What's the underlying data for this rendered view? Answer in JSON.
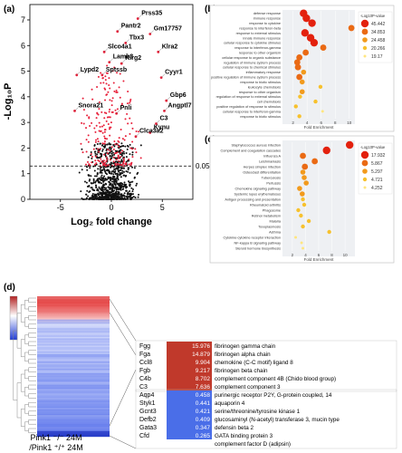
{
  "panels": {
    "a": "(a)",
    "b": "(b)",
    "c": "(c)",
    "d": "(d)"
  },
  "chart_data": [
    {
      "type": "scatter",
      "panel": "a",
      "xlabel": "Log₂ fold change",
      "ylabel": "-Log₁₀P",
      "xticks": [
        -5,
        0,
        5
      ],
      "yticks": [
        0,
        1,
        2,
        3,
        4,
        5,
        6,
        7
      ],
      "xlim": [
        -8,
        8
      ],
      "ylim": [
        0,
        7.6
      ],
      "threshold": {
        "value": 1.3,
        "label": "0.05"
      },
      "points": [
        {
          "label": "Prss35",
          "x": 2.6,
          "y": 7.05
        },
        {
          "label": "Pantr2",
          "x": 0.6,
          "y": 6.55
        },
        {
          "label": "Gm17757",
          "x": 3.8,
          "y": 6.45
        },
        {
          "label": "Tbx3",
          "x": 1.4,
          "y": 6.1
        },
        {
          "label": "Slco4a1",
          "x": -0.7,
          "y": 5.75
        },
        {
          "label": "Klra2",
          "x": 4.6,
          "y": 5.75
        },
        {
          "label": "Lamb3",
          "x": -0.2,
          "y": 5.35
        },
        {
          "label": "Klrg2",
          "x": 1.0,
          "y": 5.3
        },
        {
          "label": "Lypd2",
          "x": -3.4,
          "y": 4.85
        },
        {
          "label": "Sptssb",
          "x": -0.9,
          "y": 4.85
        },
        {
          "label": "Cyyr1",
          "x": 4.9,
          "y": 4.75
        },
        {
          "label": "Gbp6",
          "x": 5.4,
          "y": 3.85
        },
        {
          "label": "Snora21",
          "x": -3.6,
          "y": 3.45
        },
        {
          "label": "Angptl7",
          "x": 5.2,
          "y": 3.45
        },
        {
          "label": "Pnli",
          "x": 0.5,
          "y": 3.35
        },
        {
          "label": "C3",
          "x": 4.4,
          "y": 2.95
        },
        {
          "label": "Kynu",
          "x": 3.8,
          "y": 2.6
        },
        {
          "label": "Clca3a2",
          "x": 2.4,
          "y": 2.45
        }
      ]
    },
    {
      "type": "bubble",
      "panel": "b",
      "xlabel": "Fold Enrichment",
      "xticks": [
        2,
        4,
        6,
        8,
        10
      ],
      "xlim": [
        0.5,
        10.8
      ],
      "legend": {
        "title": "-Log10P-value",
        "entries": [
          "45.442",
          "34.853",
          "24.458",
          "20.266",
          "19.17"
        ]
      },
      "categories": [
        "defense response",
        "immune response",
        "response to cytokine",
        "response to interferon-beta",
        "response to external stimulus",
        "innate immune response",
        "cellular response to cytokine stimulus",
        "response to interferon-gamma",
        "response to other organism",
        "cellular response to organic substance",
        "regulation of immune system process",
        "cellular response to chemical stimulus",
        "inflammatory response",
        "positive regulation of immune system process",
        "response to biotic stimulus",
        "leukocyte chemotaxis",
        "response to other organism",
        "regulation of response to external stimulus",
        "cell chemotaxis",
        "positive regulation of response to stimulus",
        "cellular response to interferon-gamma",
        "response to biotic stimulus"
      ],
      "x": [
        3.5,
        3.9,
        4.7,
        10.3,
        3.7,
        4.5,
        5.0,
        6.3,
        3.8,
        2.9,
        2.6,
        2.7,
        3.5,
        2.9,
        3.3,
        5.9,
        3.3,
        3.0,
        5.2,
        2.4,
        6.2,
        2.9
      ],
      "level": [
        5,
        5,
        5,
        4,
        5,
        5,
        5,
        4,
        4,
        4,
        4,
        4,
        3,
        4,
        3,
        2,
        3,
        2,
        2,
        2,
        1,
        2
      ]
    },
    {
      "type": "bubble",
      "panel": "c",
      "xlabel": "Fold Enrichment",
      "xticks": [
        2,
        4,
        6,
        8,
        10
      ],
      "xlim": [
        0.5,
        11.5
      ],
      "legend": {
        "title": "-Log10P-value",
        "entries": [
          "17.932",
          "5.867",
          "5.297",
          "4.721",
          "4.252"
        ]
      },
      "categories": [
        "Staphylococcus aureus infection",
        "Complement and coagulation cascades",
        "Influenza A",
        "Leishmaniasis",
        "Herpes simplex infection",
        "Osteoclast differentiation",
        "Tuberculosis",
        "Pertussis",
        "Chemokine signaling pathway",
        "Systemic lupus erythematosus",
        "Antigen processing and presentation",
        "Rheumatoid arthritis",
        "Phagosome",
        "Retinol metabolism",
        "Malaria",
        "Toxoplasmosis",
        "Asthma",
        "Cytokine-cytokine receptor interaction",
        "NF-kappa B signaling pathway",
        "Steroid hormone biosynthesis"
      ],
      "x": [
        10.7,
        7.2,
        3.6,
        5.4,
        3.9,
        3.6,
        3.8,
        4.1,
        3.1,
        3.5,
        3.6,
        3.8,
        2.9,
        3.3,
        4.5,
        3.6,
        7.6,
        2.5,
        3.4,
        3.6
      ],
      "level": [
        5,
        5,
        4,
        4,
        4,
        3,
        3,
        3,
        3,
        3,
        2,
        2,
        2,
        2,
        2,
        2,
        2,
        1,
        1,
        1
      ]
    },
    {
      "type": "heatmap",
      "panel": "d",
      "column_label": [
        "Pink1 ⁻/⁻ 24M",
        "/Pink1 ⁺/⁺ 24M"
      ],
      "up": [
        {
          "gene": "Fgg",
          "value": "15.976",
          "desc": "fibrinogen gamma chain"
        },
        {
          "gene": "Fga",
          "value": "14.879",
          "desc": "fibrinogen alpha chain"
        },
        {
          "gene": "Ccl8",
          "value": "9.904",
          "desc": "chemokine (C-C motif) ligand 8"
        },
        {
          "gene": "Fgb",
          "value": "9.217",
          "desc": "fibrinogen beta chain"
        },
        {
          "gene": "C4b",
          "value": "8.702",
          "desc": "complement component 4B (Chido blood group)"
        },
        {
          "gene": "C3",
          "value": "7.636",
          "desc": "complement component 3"
        }
      ],
      "down": [
        {
          "gene": "Aqp4",
          "value": "0.458",
          "desc": "purinergic receptor P2Y, G-protein coupled, 14"
        },
        {
          "gene": "Styk1",
          "value": "0.441",
          "desc": "aquaporin 4"
        },
        {
          "gene": "Gcnt3",
          "value": "0.421",
          "desc": "serine/threonine/tyrosine kinase 1"
        },
        {
          "gene": "Defb2",
          "value": "0.409",
          "desc": "glucosaminyl (N-acetyl) transferase 3, mucin type"
        },
        {
          "gene": "Gata3",
          "value": "0.347",
          "desc": "defensin beta 2"
        },
        {
          "gene": "Cfd",
          "value": "0.265",
          "desc": "GATA binding protein 3"
        },
        {
          "gene": "",
          "value": "",
          "desc": "complement factor D (adipsin)"
        }
      ]
    }
  ],
  "colors": {
    "up_red": "#c0392b",
    "down_blue": "#4a6ee8",
    "sig_point": "#e8203a",
    "bubble_levels": [
      "#ffe680",
      "#f7c12d",
      "#f29a1c",
      "#ea6a14",
      "#e3210e"
    ]
  }
}
